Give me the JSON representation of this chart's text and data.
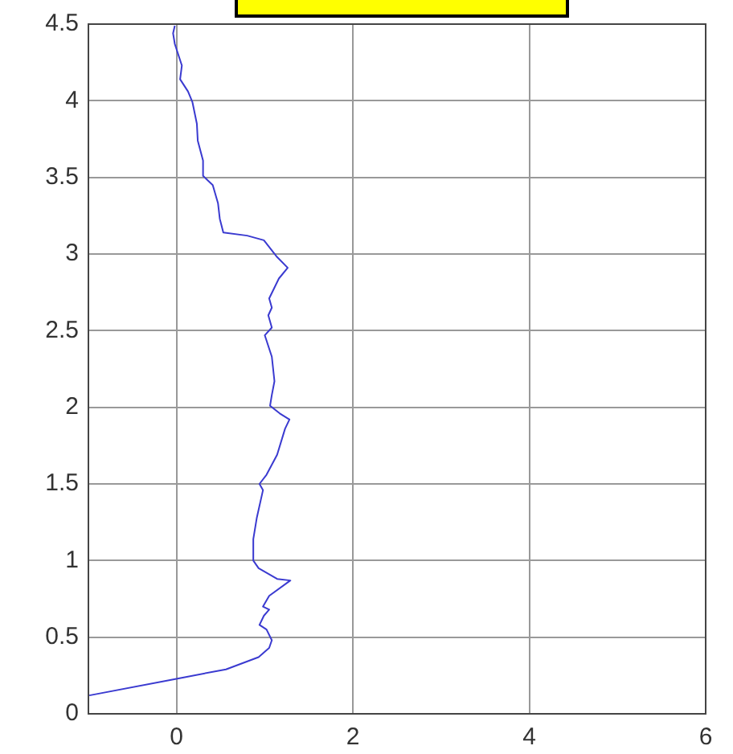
{
  "chart_data": {
    "type": "line",
    "color": "#3a3ad0",
    "x": [
      -0.99,
      0.01,
      0.56,
      0.93,
      1.05,
      1.08,
      1.02,
      0.94,
      0.99,
      1.05,
      0.98,
      1.05,
      1.29,
      1.14,
      0.93,
      0.87,
      0.87,
      0.91,
      0.98,
      0.94,
      1.02,
      1.14,
      1.23,
      1.28,
      1.17,
      1.06,
      1.08,
      1.11,
      1.08,
      1.0,
      1.08,
      1.04,
      1.08,
      1.05,
      1.16,
      1.26,
      1.14,
      0.99,
      0.8,
      0.53,
      0.49,
      0.47,
      0.41,
      0.3,
      0.3,
      0.24,
      0.23,
      0.18,
      0.13,
      0.04,
      0.06,
      -0.02,
      -0.04,
      -0.02
    ],
    "values": [
      0.12,
      0.23,
      0.29,
      0.37,
      0.43,
      0.48,
      0.55,
      0.58,
      0.64,
      0.68,
      0.7,
      0.77,
      0.87,
      0.88,
      0.95,
      1.0,
      1.14,
      1.28,
      1.46,
      1.5,
      1.56,
      1.69,
      1.86,
      1.92,
      1.96,
      2.01,
      2.08,
      2.17,
      2.33,
      2.47,
      2.52,
      2.6,
      2.65,
      2.71,
      2.84,
      2.91,
      2.98,
      3.09,
      3.12,
      3.14,
      3.23,
      3.33,
      3.45,
      3.51,
      3.61,
      3.74,
      3.85,
      3.99,
      4.06,
      4.14,
      4.23,
      4.37,
      4.44,
      4.49
    ],
    "xlim": [
      -1,
      6
    ],
    "xticks": [
      0,
      2,
      4,
      6
    ],
    "ylim": [
      0,
      4.5
    ],
    "yticks": [
      0,
      0.5,
      1,
      1.5,
      2,
      2.5,
      3,
      3.5,
      4,
      4.5
    ],
    "grid": true
  }
}
